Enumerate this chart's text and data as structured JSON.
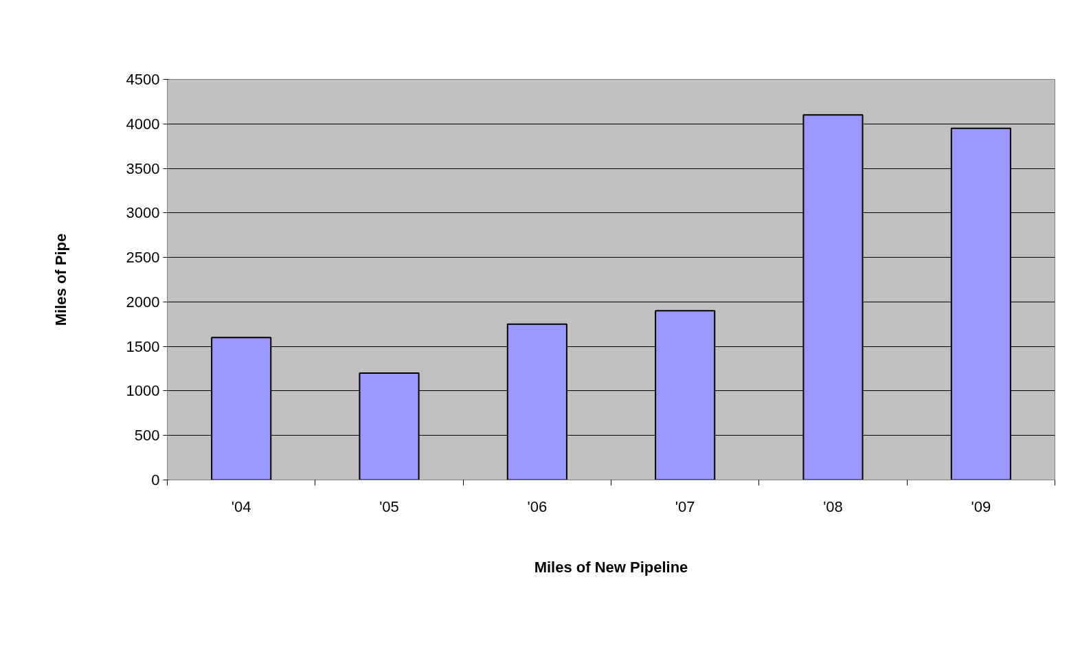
{
  "chart_data": {
    "type": "bar",
    "xlabel": "Miles of New Pipeline",
    "ylabel": "Miles of Pipe",
    "categories": [
      "'04",
      "'05",
      "'06",
      "'07",
      "'08",
      "'09"
    ],
    "values": [
      1600,
      1200,
      1750,
      1900,
      4100,
      3950
    ],
    "color": "#9999ff",
    "ylim": [
      0,
      4500
    ],
    "yticks": [
      0,
      500,
      1000,
      1500,
      2000,
      2500,
      3000,
      3500,
      4000,
      4500
    ],
    "grid": "y"
  }
}
